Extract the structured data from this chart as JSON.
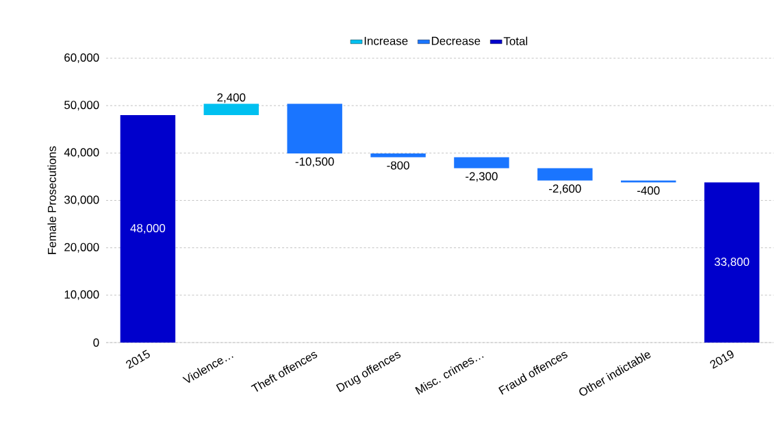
{
  "chart_data": {
    "type": "bar",
    "ylabel": "Female Prosecutions",
    "categories": [
      "2015",
      "Violence…",
      "Theft offences",
      "Drug offences",
      "Misc. crimes…",
      "Fraud offences",
      "Other indictable",
      "2019"
    ],
    "series": [
      {
        "name": "Increase",
        "color": "#00c0f0",
        "values": [
          null,
          2400,
          null,
          null,
          null,
          null,
          null,
          null
        ],
        "base": [
          null,
          48000,
          null,
          null,
          null,
          null,
          null,
          null
        ],
        "value_labels": [
          null,
          "2,400",
          null,
          null,
          null,
          null,
          null,
          null
        ]
      },
      {
        "name": "Decrease",
        "color": "#1a75ff",
        "values": [
          null,
          null,
          -10500,
          -800,
          -2300,
          -2600,
          -400,
          null
        ],
        "base": [
          null,
          null,
          50400,
          39900,
          39100,
          36800,
          34200,
          null
        ],
        "value_labels": [
          null,
          null,
          "-10,500",
          "-800",
          "-2,300",
          "-2,600",
          "-400",
          null
        ]
      },
      {
        "name": "Total",
        "color": "#0000cc",
        "values": [
          48000,
          null,
          null,
          null,
          null,
          null,
          null,
          33800
        ],
        "value_labels": [
          "48,000",
          null,
          null,
          null,
          null,
          null,
          null,
          "33,800"
        ]
      }
    ],
    "ylim": [
      0,
      60000
    ],
    "yticks": [
      0,
      {
        "value": 10000,
        "label": "10,000"
      },
      {
        "value": 20000,
        "label": "20,000"
      },
      {
        "value": 30000,
        "label": "30,000"
      },
      {
        "value": 40000,
        "label": "40,000"
      },
      {
        "value": 50000,
        "label": "50,000"
      },
      {
        "value": 60000,
        "label": "60,000"
      }
    ],
    "grid": "y",
    "legend": "top"
  }
}
